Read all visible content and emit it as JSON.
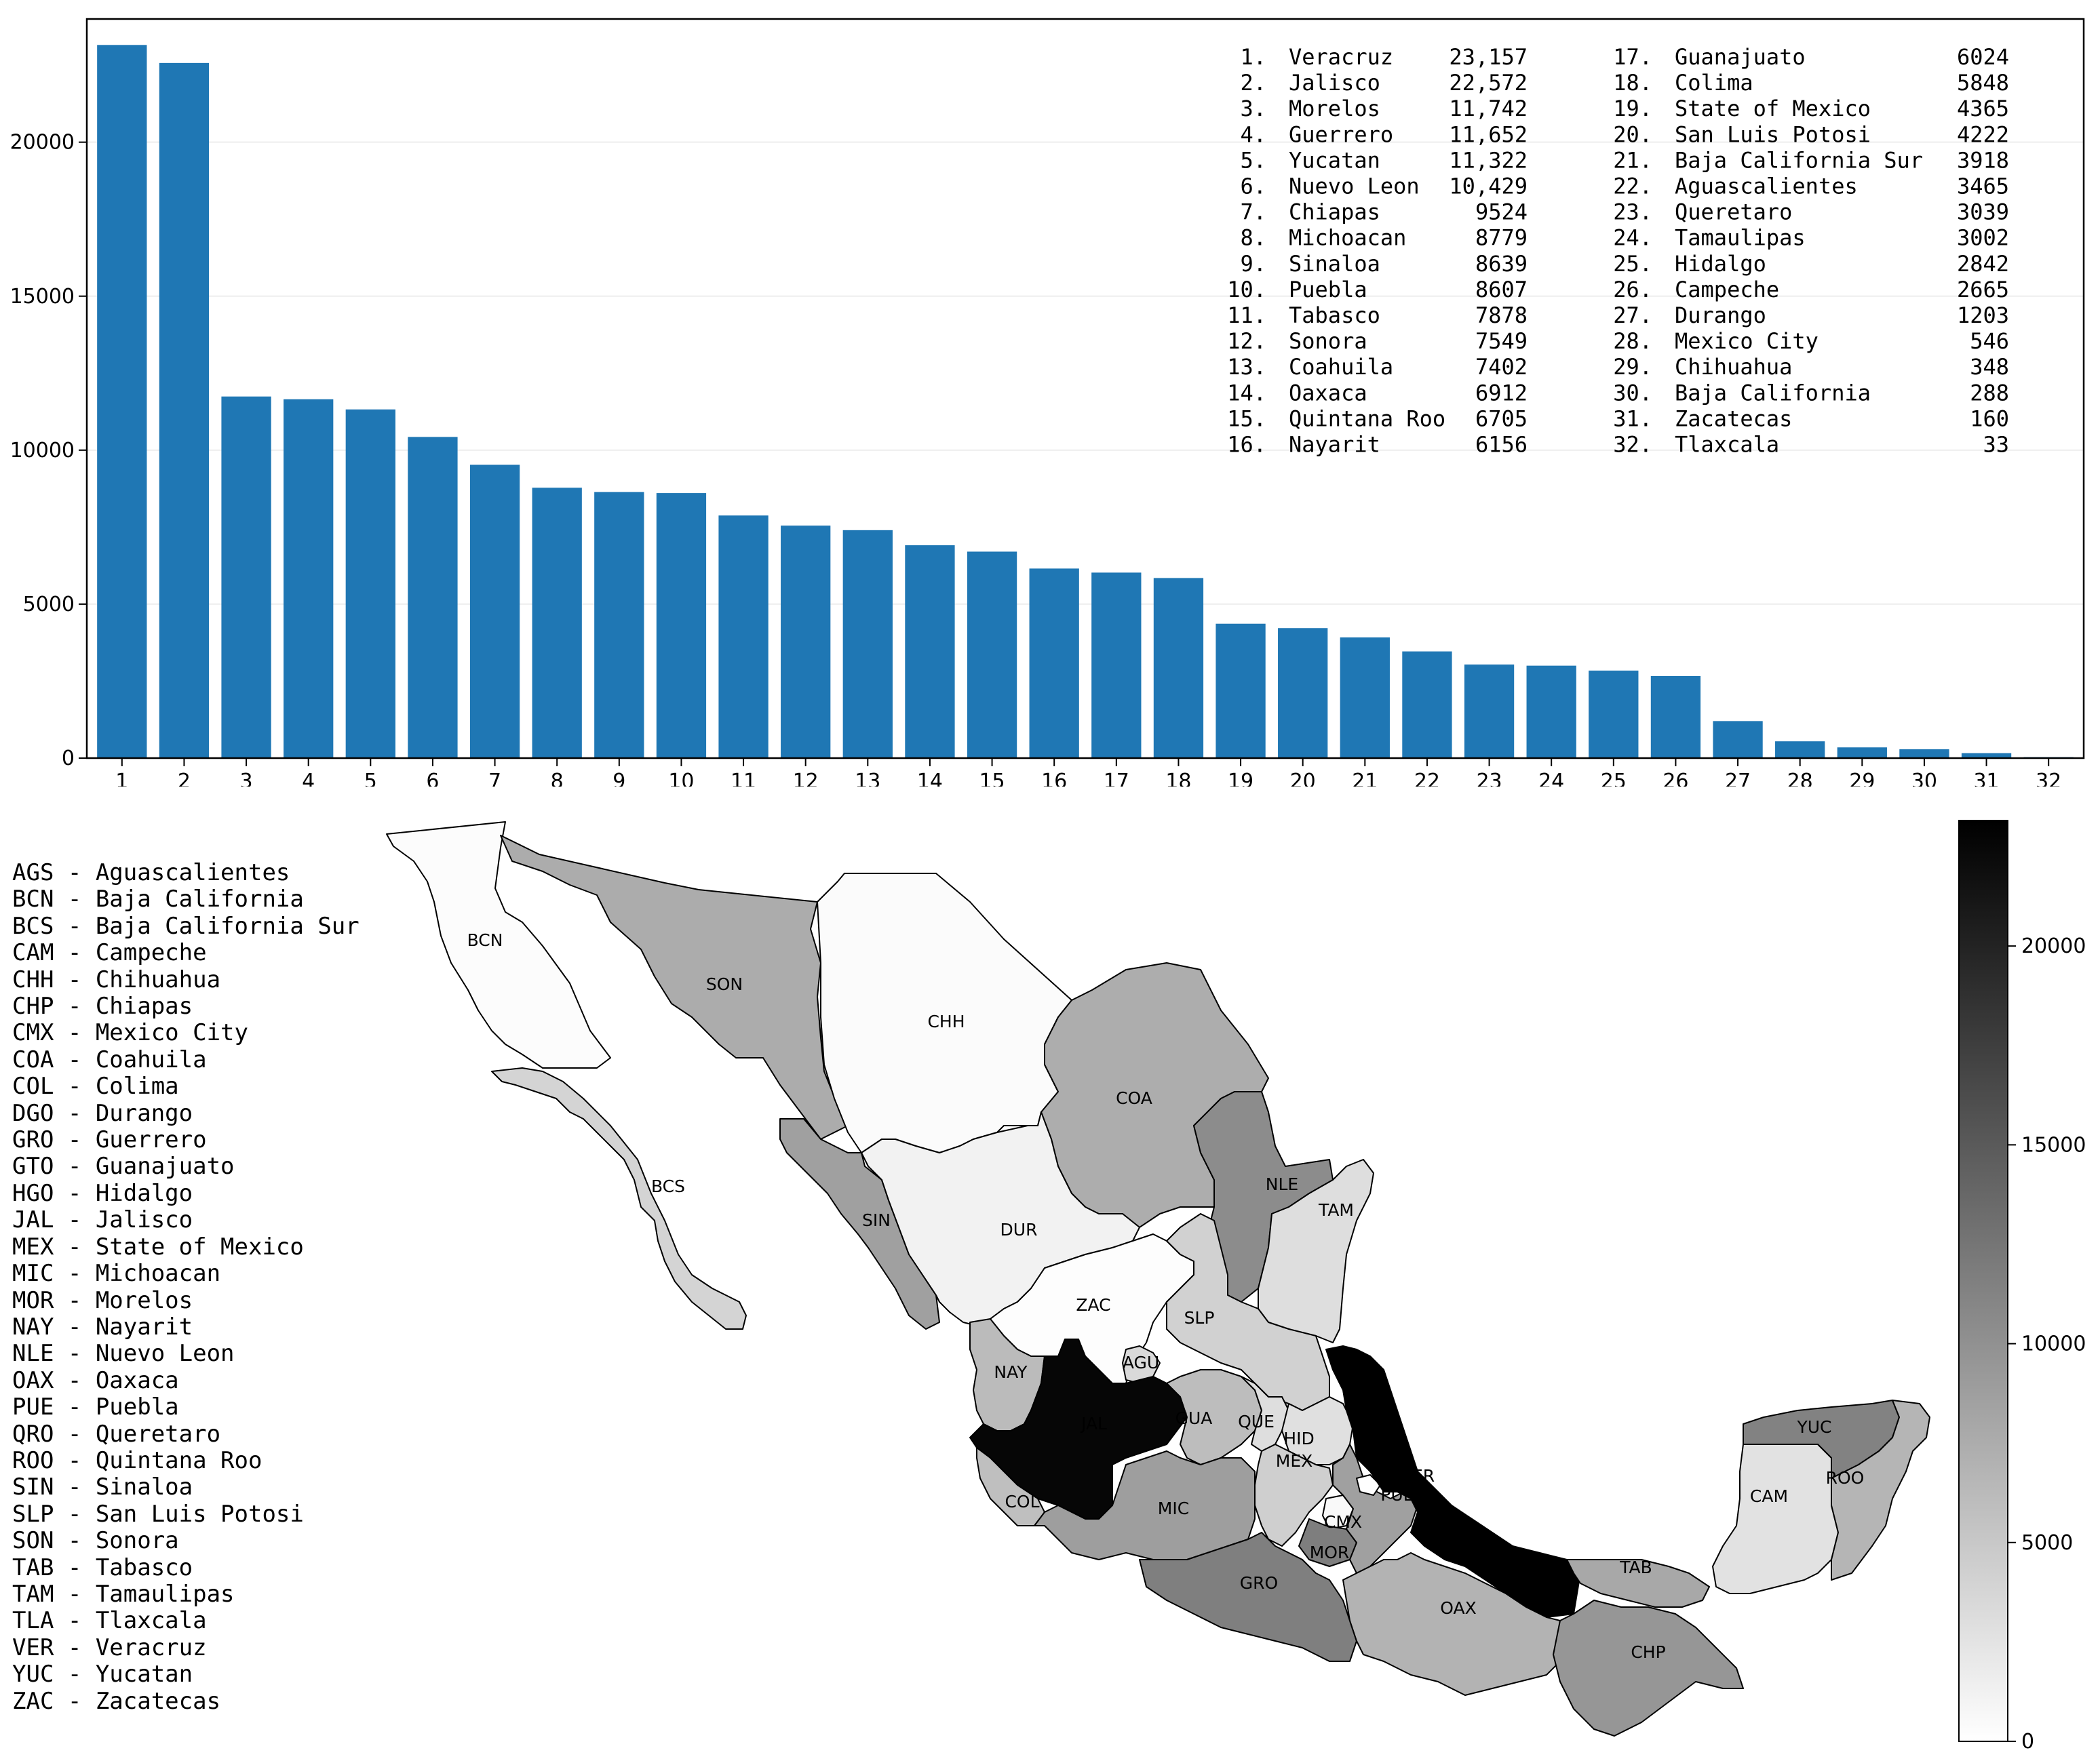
{
  "colors": {
    "bar": "#1f77b4",
    "axis": "#000000",
    "grid": "#eeeeee",
    "region_border": "#000000"
  },
  "chart_data": [
    {
      "type": "bar",
      "categories": [
        "1",
        "2",
        "3",
        "4",
        "5",
        "6",
        "7",
        "8",
        "9",
        "10",
        "11",
        "12",
        "13",
        "14",
        "15",
        "16",
        "17",
        "18",
        "19",
        "20",
        "21",
        "22",
        "23",
        "24",
        "25",
        "26",
        "27",
        "28",
        "29",
        "30",
        "31",
        "32"
      ],
      "values": [
        23157,
        22572,
        11742,
        11652,
        11322,
        10429,
        9524,
        8779,
        8639,
        8607,
        7878,
        7549,
        7402,
        6912,
        6705,
        6156,
        6024,
        5848,
        4365,
        4222,
        3918,
        3465,
        3039,
        3002,
        2842,
        2665,
        1203,
        546,
        348,
        288,
        160,
        33
      ],
      "ylim": [
        0,
        24000
      ],
      "yticks": [
        "0",
        "5000",
        "10000",
        "15000",
        "20000"
      ],
      "grid": true,
      "title": "",
      "xlabel": "",
      "ylabel": "",
      "ranking": [
        {
          "rank": "1.",
          "name": "Veracruz",
          "value": "23,157"
        },
        {
          "rank": "2.",
          "name": "Jalisco",
          "value": "22,572"
        },
        {
          "rank": "3.",
          "name": "Morelos",
          "value": "11,742"
        },
        {
          "rank": "4.",
          "name": "Guerrero",
          "value": "11,652"
        },
        {
          "rank": "5.",
          "name": "Yucatan",
          "value": "11,322"
        },
        {
          "rank": "6.",
          "name": "Nuevo Leon",
          "value": "10,429"
        },
        {
          "rank": "7.",
          "name": "Chiapas",
          "value": "9524"
        },
        {
          "rank": "8.",
          "name": "Michoacan",
          "value": "8779"
        },
        {
          "rank": "9.",
          "name": "Sinaloa",
          "value": "8639"
        },
        {
          "rank": "10.",
          "name": "Puebla",
          "value": "8607"
        },
        {
          "rank": "11.",
          "name": "Tabasco",
          "value": "7878"
        },
        {
          "rank": "12.",
          "name": "Sonora",
          "value": "7549"
        },
        {
          "rank": "13.",
          "name": "Coahuila",
          "value": "7402"
        },
        {
          "rank": "14.",
          "name": "Oaxaca",
          "value": "6912"
        },
        {
          "rank": "15.",
          "name": "Quintana Roo",
          "value": "6705"
        },
        {
          "rank": "16.",
          "name": "Nayarit",
          "value": "6156"
        },
        {
          "rank": "17.",
          "name": "Guanajuato",
          "value": "6024"
        },
        {
          "rank": "18.",
          "name": "Colima",
          "value": "5848"
        },
        {
          "rank": "19.",
          "name": "State of Mexico",
          "value": "4365"
        },
        {
          "rank": "20.",
          "name": "San Luis Potosi",
          "value": "4222"
        },
        {
          "rank": "21.",
          "name": "Baja California Sur",
          "value": "3918"
        },
        {
          "rank": "22.",
          "name": "Aguascalientes",
          "value": "3465"
        },
        {
          "rank": "23.",
          "name": "Queretaro",
          "value": "3039"
        },
        {
          "rank": "24.",
          "name": "Tamaulipas",
          "value": "3002"
        },
        {
          "rank": "25.",
          "name": "Hidalgo",
          "value": "2842"
        },
        {
          "rank": "26.",
          "name": "Campeche",
          "value": "2665"
        },
        {
          "rank": "27.",
          "name": "Durango",
          "value": "1203"
        },
        {
          "rank": "28.",
          "name": "Mexico City",
          "value": "546"
        },
        {
          "rank": "29.",
          "name": "Chihuahua",
          "value": "348"
        },
        {
          "rank": "30.",
          "name": "Baja California",
          "value": "288"
        },
        {
          "rank": "31.",
          "name": "Zacatecas",
          "value": "160"
        },
        {
          "rank": "32.",
          "name": "Tlaxcala",
          "value": "33"
        }
      ]
    },
    {
      "type": "heatmap",
      "colormap": "white-to-black",
      "colorbar_range": [
        0,
        23157
      ],
      "colorbar_ticks": [
        "0",
        "5000",
        "10000",
        "15000",
        "20000"
      ],
      "regions": [
        {
          "code": "BCN",
          "value": 288
        },
        {
          "code": "SON",
          "value": 7549
        },
        {
          "code": "CHH",
          "value": 348
        },
        {
          "code": "COA",
          "value": 7402
        },
        {
          "code": "NLE",
          "value": 10429
        },
        {
          "code": "TAM",
          "value": 3002
        },
        {
          "code": "BCS",
          "value": 3918
        },
        {
          "code": "SIN",
          "value": 8639
        },
        {
          "code": "DUR",
          "value": 1203
        },
        {
          "code": "ZAC",
          "value": 160
        },
        {
          "code": "SLP",
          "value": 4222
        },
        {
          "code": "NAY",
          "value": 6156
        },
        {
          "code": "AGU",
          "value": 3465
        },
        {
          "code": "JAL",
          "value": 22572
        },
        {
          "code": "GUA",
          "value": 6024
        },
        {
          "code": "QUE",
          "value": 3039
        },
        {
          "code": "HID",
          "value": 2842
        },
        {
          "code": "MEX",
          "value": 4365
        },
        {
          "code": "VER",
          "value": 23157
        },
        {
          "code": "COL",
          "value": 5848
        },
        {
          "code": "MIC",
          "value": 8779
        },
        {
          "code": "CMX",
          "value": 546
        },
        {
          "code": "PUE",
          "value": 8607
        },
        {
          "code": "MOR",
          "value": 11742
        },
        {
          "code": "GRO",
          "value": 11652
        },
        {
          "code": "OAX",
          "value": 6912
        },
        {
          "code": "TAB",
          "value": 7878
        },
        {
          "code": "CHP",
          "value": 9524
        },
        {
          "code": "CAM",
          "value": 2665
        },
        {
          "code": "YUC",
          "value": 11322
        },
        {
          "code": "ROO",
          "value": 6705
        },
        {
          "code": "TLA",
          "value": 33
        }
      ]
    }
  ],
  "state_legend": [
    "AGS - Aguascalientes",
    "BCN - Baja California",
    "BCS - Baja California Sur",
    "CAM - Campeche",
    "CHH - Chihuahua",
    "CHP - Chiapas",
    "CMX - Mexico City",
    "COA - Coahuila",
    "COL - Colima",
    "DGO - Durango",
    "GRO - Guerrero",
    "GTO - Guanajuato",
    "HGO - Hidalgo",
    "JAL - Jalisco",
    "MEX - State of Mexico",
    "MIC - Michoacan",
    "MOR - Morelos",
    "NAY - Nayarit",
    "NLE - Nuevo Leon",
    "OAX - Oaxaca",
    "PUE - Puebla",
    "QRO - Queretaro",
    "ROO - Quintana Roo",
    "SIN - Sinaloa",
    "SLP - San Luis Potosi",
    "SON - Sonora",
    "TAB - Tabasco",
    "TAM - Tamaulipas",
    "TLA - Tlaxcala",
    "VER - Veracruz",
    "YUC - Yucatan",
    "ZAC - Zacatecas"
  ]
}
